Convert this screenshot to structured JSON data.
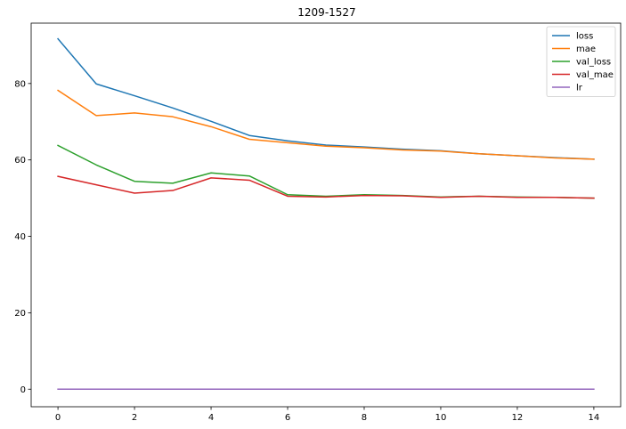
{
  "chart_data": {
    "type": "line",
    "title": "1209-1527",
    "xlabel": "",
    "ylabel": "",
    "x": [
      0,
      1,
      2,
      3,
      4,
      5,
      6,
      7,
      8,
      9,
      10,
      11,
      12,
      13,
      14
    ],
    "xlim": [
      -0.7,
      14.7
    ],
    "ylim": [
      -4.6,
      95.8
    ],
    "xticks": [
      "0",
      "2",
      "4",
      "6",
      "8",
      "10",
      "12",
      "14"
    ],
    "yticks": [
      "0",
      "20",
      "40",
      "60",
      "80"
    ],
    "grid": false,
    "legend_position": "top-right",
    "series": [
      {
        "name": "loss",
        "color": "#1f77b4",
        "values": [
          91.7,
          79.9,
          76.8,
          73.6,
          70.1,
          66.4,
          65.0,
          63.9,
          63.4,
          62.8,
          62.4,
          61.6,
          61.1,
          60.6,
          60.2
        ]
      },
      {
        "name": "mae",
        "color": "#ff7f0e",
        "values": [
          78.2,
          71.6,
          72.3,
          71.3,
          68.7,
          65.4,
          64.5,
          63.6,
          63.2,
          62.6,
          62.3,
          61.6,
          61.1,
          60.5,
          60.2
        ]
      },
      {
        "name": "val_loss",
        "color": "#2ca02c",
        "values": [
          63.8,
          58.7,
          54.4,
          53.9,
          56.6,
          55.8,
          50.9,
          50.5,
          50.9,
          50.7,
          50.3,
          50.5,
          50.3,
          50.2,
          50.0
        ]
      },
      {
        "name": "val_mae",
        "color": "#d62728",
        "values": [
          55.7,
          53.5,
          51.3,
          52.0,
          55.3,
          54.7,
          50.5,
          50.3,
          50.7,
          50.6,
          50.2,
          50.5,
          50.2,
          50.2,
          50.0
        ]
      },
      {
        "name": "lr",
        "color": "#9467bd",
        "values": [
          0.001,
          0.001,
          0.001,
          0.001,
          0.001,
          0.001,
          0.001,
          0.001,
          0.001,
          0.001,
          0.001,
          0.001,
          0.001,
          0.001,
          0.001
        ]
      }
    ]
  }
}
